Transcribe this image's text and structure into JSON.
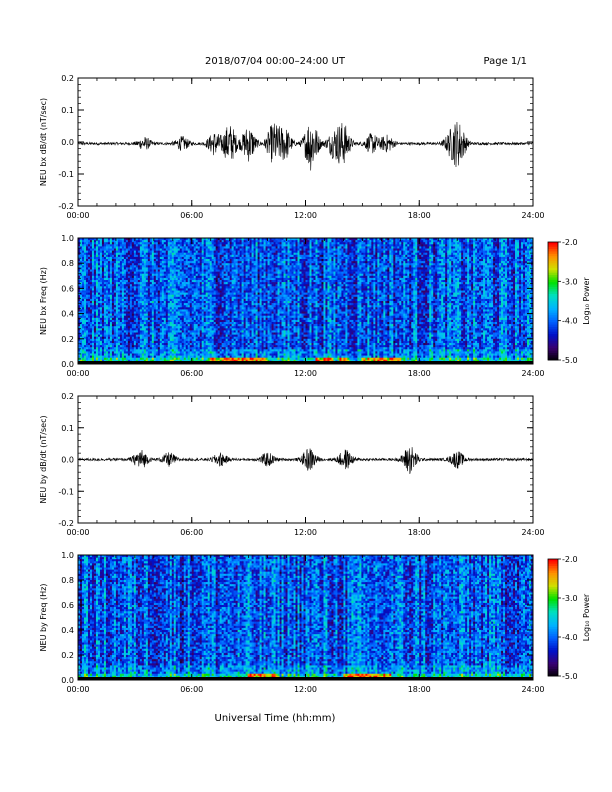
{
  "header": {
    "title": "2018/07/04  00:00–24:00 UT",
    "page": "Page 1/1"
  },
  "footer": {
    "xlabel": "Universal Time (hh:mm)"
  },
  "colors": {
    "trace": "#000000",
    "colormap": [
      "#000000",
      "#3a0070",
      "#0010c8",
      "#0060ff",
      "#00b4ff",
      "#00e0c0",
      "#00e000",
      "#d0e000",
      "#ff9000",
      "#ff0000"
    ]
  },
  "chart_data": [
    {
      "type": "line",
      "ylabel": "NEU bx dB/dt (nT/sec)",
      "xlim": [
        0,
        24
      ],
      "ylim": [
        -0.2,
        0.2
      ],
      "x_ticks": [
        "00:00",
        "06:00",
        "12:00",
        "18:00",
        "24:00"
      ],
      "y_ticks": [
        "-0.2",
        "-0.1",
        "0.0",
        "0.1",
        "0.2"
      ],
      "baseline": -0.005,
      "bursts": [
        {
          "hour": 3.5,
          "amp": 0.018
        },
        {
          "hour": 5.5,
          "amp": 0.02
        },
        {
          "hour": 7.2,
          "amp": 0.035
        },
        {
          "hour": 8.0,
          "amp": 0.06
        },
        {
          "hour": 9.0,
          "amp": 0.055
        },
        {
          "hour": 10.3,
          "amp": 0.06
        },
        {
          "hour": 10.9,
          "amp": 0.05
        },
        {
          "hour": 12.3,
          "amp": 0.085
        },
        {
          "hour": 13.5,
          "amp": 0.04
        },
        {
          "hour": 14.0,
          "amp": 0.06
        },
        {
          "hour": 15.5,
          "amp": 0.03
        },
        {
          "hour": 16.3,
          "amp": 0.025
        },
        {
          "hour": 19.7,
          "amp": 0.035
        },
        {
          "hour": 20.1,
          "amp": 0.06
        }
      ]
    },
    {
      "type": "heatmap",
      "ylabel": "NEU bx Freq (Hz)",
      "xlim": [
        0,
        24
      ],
      "ylim": [
        0,
        1.0
      ],
      "x_ticks": [
        "00:00",
        "06:00",
        "12:00",
        "18:00",
        "24:00"
      ],
      "y_ticks": [
        "0.0",
        "0.2",
        "0.4",
        "0.6",
        "0.8",
        "1.0"
      ],
      "colorbar": {
        "label": "Log₁₀ Power",
        "range": [
          -5.0,
          -2.0
        ],
        "ticks": [
          "-2.0",
          "-3.0",
          "-4.0",
          "-5.0"
        ]
      },
      "hot_low_freq_hours": [
        [
          7.0,
          10.0
        ],
        [
          12.5,
          13.5
        ],
        [
          13.8,
          14.3
        ],
        [
          15.0,
          17.0
        ]
      ]
    },
    {
      "type": "line",
      "ylabel": "NEU by dB/dt (nT/sec)",
      "xlim": [
        0,
        24
      ],
      "ylim": [
        -0.2,
        0.2
      ],
      "x_ticks": [
        "00:00",
        "06:00",
        "12:00",
        "18:00",
        "24:00"
      ],
      "y_ticks": [
        "-0.2",
        "-0.1",
        "0.0",
        "0.1",
        "0.2"
      ],
      "baseline": 0.0,
      "bursts": [
        {
          "hour": 3.3,
          "amp": 0.03
        },
        {
          "hour": 4.8,
          "amp": 0.02
        },
        {
          "hour": 7.5,
          "amp": 0.02
        },
        {
          "hour": 10.0,
          "amp": 0.02
        },
        {
          "hour": 12.2,
          "amp": 0.035
        },
        {
          "hour": 14.1,
          "amp": 0.03
        },
        {
          "hour": 17.5,
          "amp": 0.045
        },
        {
          "hour": 20.0,
          "amp": 0.025
        }
      ]
    },
    {
      "type": "heatmap",
      "ylabel": "NEU by Freq (Hz)",
      "xlim": [
        0,
        24
      ],
      "ylim": [
        0,
        1.0
      ],
      "x_ticks": [
        "00:00",
        "06:00",
        "12:00",
        "18:00",
        "24:00"
      ],
      "y_ticks": [
        "0.0",
        "0.2",
        "0.4",
        "0.6",
        "0.8",
        "1.0"
      ],
      "colorbar": {
        "label": "Log₁₀ Power",
        "range": [
          -5.0,
          -2.0
        ],
        "ticks": [
          "-2.0",
          "-3.0",
          "-4.0",
          "-5.0"
        ]
      },
      "hot_low_freq_hours": [
        [
          9.0,
          10.5
        ],
        [
          14.0,
          16.5
        ]
      ]
    }
  ]
}
